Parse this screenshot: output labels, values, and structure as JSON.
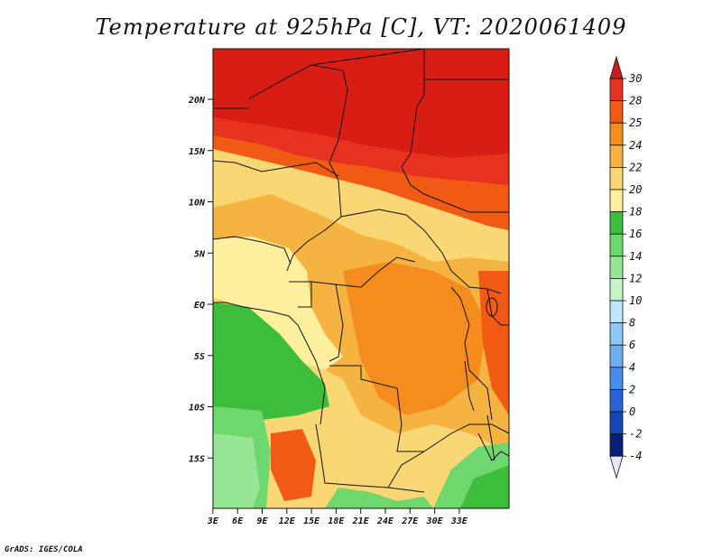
{
  "title": "Temperature at 925hPa [C], VT: 2020061409",
  "credit": "GrADS: IGES/COLA",
  "map": {
    "lat_ticks": [
      {
        "lat": 20,
        "label": "20N"
      },
      {
        "lat": 15,
        "label": "15N"
      },
      {
        "lat": 10,
        "label": "10N"
      },
      {
        "lat": 5,
        "label": "5N"
      },
      {
        "lat": 0,
        "label": "EQ"
      },
      {
        "lat": -5,
        "label": "5S"
      },
      {
        "lat": -10,
        "label": "10S"
      },
      {
        "lat": -15,
        "label": "15S"
      }
    ],
    "lon_ticks": [
      {
        "lon": 3,
        "label": "3E"
      },
      {
        "lon": 6,
        "label": "6E"
      },
      {
        "lon": 9,
        "label": "9E"
      },
      {
        "lon": 12,
        "label": "12E"
      },
      {
        "lon": 15,
        "label": "15E"
      },
      {
        "lon": 18,
        "label": "18E"
      },
      {
        "lon": 21,
        "label": "21E"
      },
      {
        "lon": 24,
        "label": "24E"
      },
      {
        "lon": 27,
        "label": "27E"
      },
      {
        "lon": 30,
        "label": "30E"
      },
      {
        "lon": 33,
        "label": "33E"
      }
    ]
  },
  "colorbar": {
    "levels": [
      "30",
      "28",
      "25",
      "24",
      "22",
      "20",
      "18",
      "16",
      "14",
      "12",
      "10",
      "8",
      "6",
      "4",
      "2",
      "0",
      "-2",
      "-4"
    ],
    "colors": [
      "#c81e1e",
      "#e6321e",
      "#f05a14",
      "#f58c1e",
      "#f5b441",
      "#fad775",
      "#fff0a0",
      "#3cbe3c",
      "#6ed76e",
      "#96e696",
      "#c8f5c8",
      "#bee6ff",
      "#8cc8f5",
      "#6eaff0",
      "#468ceb",
      "#2864d7",
      "#1446b4",
      "#0a1e78",
      "#e6e6fa"
    ]
  }
}
